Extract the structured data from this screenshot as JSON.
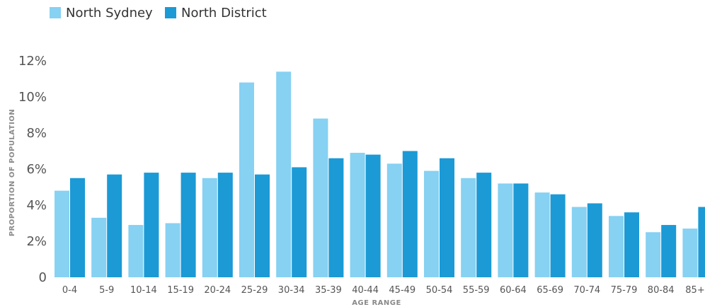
{
  "chart_data": {
    "type": "bar",
    "title": "",
    "xlabel": "AGE RANGE",
    "ylabel": "PROPORTION OF POPULATION",
    "ylim": [
      0,
      12
    ],
    "yticks": [
      "0",
      "2%",
      "4%",
      "6%",
      "8%",
      "10%",
      "12%"
    ],
    "grid": false,
    "legend_position": "top-left",
    "categories": [
      "0-4",
      "5-9",
      "10-14",
      "15-19",
      "20-24",
      "25-29",
      "30-34",
      "35-39",
      "40-44",
      "45-49",
      "50-54",
      "55-59",
      "60-64",
      "65-69",
      "70-74",
      "75-79",
      "80-84",
      "85+"
    ],
    "series": [
      {
        "name": "North Sydney",
        "color": "#87d1f2",
        "values": [
          4.8,
          3.3,
          2.9,
          3.0,
          5.5,
          10.8,
          11.4,
          8.8,
          6.9,
          6.3,
          5.9,
          5.5,
          5.2,
          4.7,
          3.9,
          3.4,
          2.5,
          2.7
        ]
      },
      {
        "name": "North District",
        "color": "#1b9ad6",
        "values": [
          5.5,
          5.7,
          5.8,
          5.8,
          5.8,
          5.7,
          6.1,
          6.6,
          6.8,
          7.0,
          6.6,
          5.8,
          5.2,
          4.6,
          4.1,
          3.6,
          2.9,
          3.9
        ]
      }
    ]
  }
}
